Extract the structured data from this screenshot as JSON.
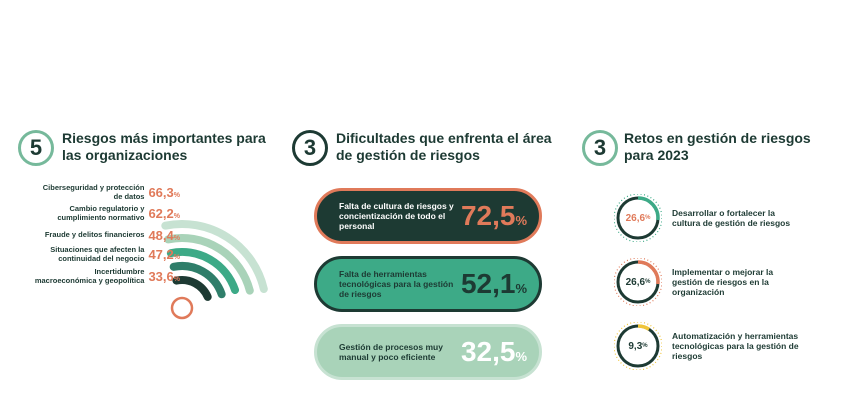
{
  "colors": {
    "dark": "#1d3a33",
    "mid_green": "#3daa87",
    "light_green": "#a9d3b9",
    "pale_green": "#c7e2d2",
    "orange": "#e07a5a",
    "yellow": "#f0c53a",
    "teal": "#2f7e6a"
  },
  "sections": {
    "s1": {
      "number": "5",
      "title": "Riesgos más importantes para las organizaciones"
    },
    "s2": {
      "number": "3",
      "title": "Dificultades que enfrenta el área de gestión de riesgos"
    },
    "s3": {
      "number": "3",
      "title": "Retos en gestión de riesgos para 2023"
    }
  },
  "chart_data": [
    {
      "type": "bar",
      "title": "Riesgos más importantes para las organizaciones",
      "categories": [
        "Ciberseguridad y protección de datos",
        "Cambio regulatorio y cumplimiento normativo",
        "Fraude y delitos financieros",
        "Situaciones que afecten la continuidad del negocio",
        "Incertidumbre macroeconómica y geopolítica"
      ],
      "values": [
        66.3,
        62.2,
        48.4,
        47.2,
        33.6
      ],
      "value_labels": [
        "66,3",
        "62,2",
        "48,4",
        "47,2",
        "33,6"
      ],
      "unit": "%"
    },
    {
      "type": "bar",
      "title": "Dificultades que enfrenta el área de gestión de riesgos",
      "categories": [
        "Falta de cultura de riesgos y concientización de todo el personal",
        "Falta de herramientas tecnológicas para la gestión de riesgos",
        "Gestión de procesos muy manual y poco eficiente"
      ],
      "values": [
        72.5,
        52.1,
        32.5
      ],
      "value_labels": [
        "72,5",
        "52,1",
        "32,5"
      ],
      "unit": "%"
    },
    {
      "type": "pie",
      "title": "Retos en gestión de riesgos para 2023",
      "categories": [
        "Desarrollar o fortalecer la cultura de gestión de riesgos",
        "Implementar o mejorar la gestión de riesgos en la organización",
        "Automatización y herramientas tecnológicas para la gestión de riesgos"
      ],
      "values": [
        26.6,
        26.6,
        9.3
      ],
      "value_labels": [
        "26,6",
        "26,6",
        "9,3"
      ],
      "unit": "%"
    }
  ]
}
